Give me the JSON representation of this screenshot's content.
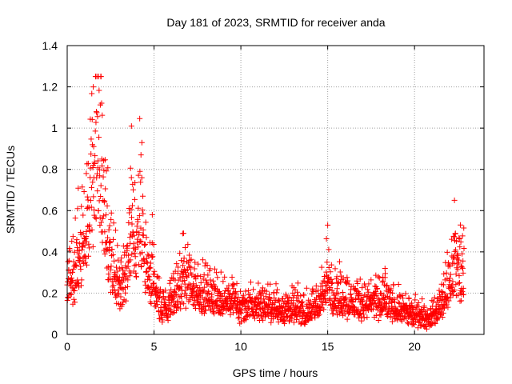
{
  "colors": {
    "series": "#ff0000",
    "grid": "#a0a0a0",
    "axis": "#000000",
    "background": "#ffffff"
  },
  "chart_data": {
    "type": "scatter",
    "title": "Day 181 of 2023, SRMTID for receiver anda",
    "xlabel": "GPS time / hours",
    "ylabel": "SRMTID / TECUs",
    "xlim": [
      0,
      24
    ],
    "ylim": [
      0,
      1.4
    ],
    "xticks": [
      0,
      5,
      10,
      15,
      20
    ],
    "yticks": [
      0,
      0.2,
      0.4,
      0.6,
      0.8,
      1,
      1.2,
      1.4
    ],
    "ytick_labels": [
      "0",
      "0.2",
      "0.4",
      "0.6",
      "0.8",
      "1",
      "1.2",
      "1.4"
    ],
    "grid": true,
    "marker": "+",
    "series": [
      {
        "name": "SRMTID",
        "envelope": [
          [
            0.0,
            0.28
          ],
          [
            0.5,
            0.3
          ],
          [
            0.8,
            0.42
          ],
          [
            1.2,
            0.55
          ],
          [
            1.5,
            0.8
          ],
          [
            1.8,
            0.95
          ],
          [
            2.1,
            0.7
          ],
          [
            2.3,
            0.5
          ],
          [
            2.6,
            0.33
          ],
          [
            3.0,
            0.25
          ],
          [
            3.4,
            0.3
          ],
          [
            3.7,
            0.55
          ],
          [
            3.9,
            0.45
          ],
          [
            4.2,
            0.6
          ],
          [
            4.6,
            0.3
          ],
          [
            5.0,
            0.28
          ],
          [
            5.3,
            0.16
          ],
          [
            5.7,
            0.14
          ],
          [
            6.2,
            0.2
          ],
          [
            6.8,
            0.27
          ],
          [
            7.5,
            0.24
          ],
          [
            8.2,
            0.2
          ],
          [
            9.0,
            0.18
          ],
          [
            9.5,
            0.2
          ],
          [
            10.0,
            0.14
          ],
          [
            11.0,
            0.15
          ],
          [
            12.0,
            0.14
          ],
          [
            13.0,
            0.13
          ],
          [
            14.0,
            0.12
          ],
          [
            14.6,
            0.18
          ],
          [
            15.0,
            0.25
          ],
          [
            15.5,
            0.2
          ],
          [
            16.0,
            0.18
          ],
          [
            17.0,
            0.16
          ],
          [
            18.0,
            0.17
          ],
          [
            19.0,
            0.14
          ],
          [
            20.0,
            0.11
          ],
          [
            20.8,
            0.08
          ],
          [
            21.3,
            0.12
          ],
          [
            21.7,
            0.2
          ],
          [
            22.1,
            0.3
          ],
          [
            22.4,
            0.35
          ],
          [
            22.8,
            0.32
          ]
        ],
        "peaks": [
          [
            1.95,
            1.25
          ],
          [
            1.5,
            1.2
          ],
          [
            3.7,
            1.01
          ],
          [
            4.3,
            0.93
          ],
          [
            4.9,
            0.58
          ],
          [
            1.1,
            0.78
          ],
          [
            22.3,
            0.65
          ],
          [
            15.0,
            0.53
          ],
          [
            6.7,
            0.49
          ],
          [
            18.3,
            0.32
          ],
          [
            0.6,
            0.61
          ]
        ]
      }
    ]
  }
}
